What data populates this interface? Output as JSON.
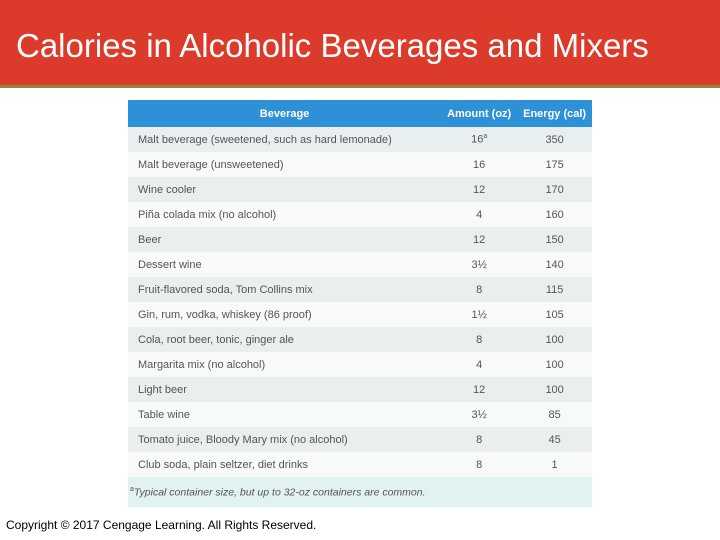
{
  "header": {
    "title": "Calories in Alcoholic Beverages and Mixers"
  },
  "table": {
    "columns": [
      "Beverage",
      "Amount (oz)",
      "Energy (cal)"
    ],
    "rows": [
      [
        "Malt beverage (sweetened, such as hard lemonade)",
        "16",
        "350"
      ],
      [
        "Malt beverage (unsweetened)",
        "16",
        "175"
      ],
      [
        "Wine cooler",
        "12",
        "170"
      ],
      [
        "Piña colada mix (no alcohol)",
        "4",
        "160"
      ],
      [
        "Beer",
        "12",
        "150"
      ],
      [
        "Dessert wine",
        "3½",
        "140"
      ],
      [
        "Fruit-flavored soda, Tom Collins mix",
        "8",
        "115"
      ],
      [
        "Gin, rum, vodka, whiskey (86 proof)",
        "1½",
        "105"
      ],
      [
        "Cola, root beer, tonic, ginger ale",
        "8",
        "100"
      ],
      [
        "Margarita mix (no alcohol)",
        "4",
        "100"
      ],
      [
        "Light beer",
        "12",
        "100"
      ],
      [
        "Table wine",
        "3½",
        "85"
      ],
      [
        "Tomato juice, Bloody Mary mix (no alcohol)",
        "8",
        "45"
      ],
      [
        "Club soda, plain seltzer, diet drinks",
        "8",
        "1"
      ]
    ],
    "footnote": {
      "marker": "a",
      "text": "Typical container size, but up to 32-oz containers are common."
    }
  },
  "footer": {
    "copyright": "Copyright © 2017 Cengage Learning. All Rights Reserved."
  }
}
